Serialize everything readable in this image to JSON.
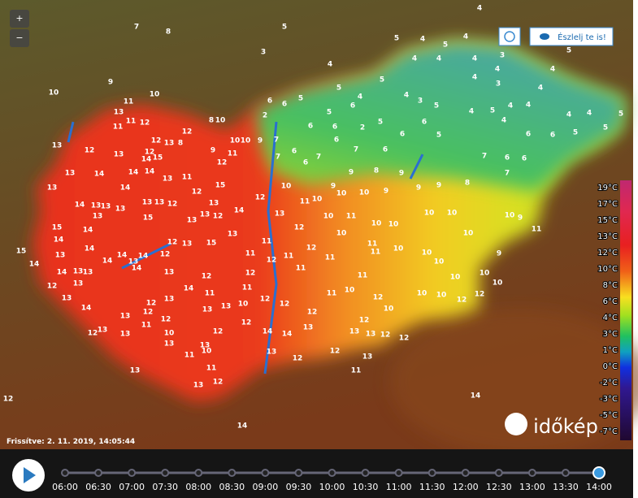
{
  "controls": {
    "zoom_in": "+",
    "zoom_out": "−",
    "report_button": "Észlelj te is!"
  },
  "map": {
    "stations": [
      4,
      7,
      8,
      5,
      3,
      4,
      5,
      9,
      10,
      10,
      11,
      12,
      14,
      14,
      5,
      4,
      5,
      4,
      4,
      4,
      4,
      3,
      4,
      4,
      5,
      4,
      3,
      4,
      5,
      5,
      4,
      5,
      6,
      4,
      3,
      5,
      4,
      5,
      4,
      4,
      4,
      4,
      5,
      5,
      6,
      6,
      4,
      5,
      2,
      6,
      6,
      5,
      2,
      6,
      6,
      6,
      7,
      6,
      6,
      6,
      5,
      7,
      6,
      6,
      7,
      8,
      8,
      9,
      9,
      7,
      6,
      6,
      7,
      7,
      9,
      9,
      9,
      9,
      9,
      10,
      10,
      10,
      11,
      10,
      12,
      13,
      12,
      10,
      11,
      10,
      10,
      10,
      10,
      10,
      10,
      9,
      11,
      9,
      10,
      10,
      10,
      10,
      10,
      10,
      11,
      11,
      10,
      11,
      12,
      11,
      11,
      12,
      11,
      11,
      12,
      11,
      12,
      12,
      12,
      11,
      10,
      11,
      12,
      10,
      10,
      10,
      12,
      12,
      12,
      13,
      13,
      12,
      12,
      13,
      14,
      14,
      13,
      12,
      12,
      13,
      11,
      12,
      10,
      13,
      11,
      11,
      12,
      12,
      8,
      8,
      10,
      10,
      10,
      11,
      9,
      12,
      13,
      12,
      12,
      15,
      14,
      13,
      12,
      13,
      13,
      14,
      14,
      14,
      13,
      11,
      13,
      14,
      14,
      13,
      13,
      13,
      13,
      13,
      13,
      12,
      12,
      15,
      13,
      13,
      12,
      14,
      13,
      15,
      15,
      14,
      14,
      15,
      14,
      13,
      14,
      14,
      14,
      13,
      14,
      12,
      12,
      13,
      15,
      13,
      14,
      13,
      13,
      12,
      13,
      14,
      13,
      14,
      12,
      11,
      13,
      14,
      13,
      12,
      12,
      13,
      13,
      13,
      13,
      12,
      13,
      11,
      12,
      10,
      12,
      13,
      13,
      13,
      11,
      10,
      11,
      12,
      13
    ]
  },
  "legend": {
    "labels": [
      "19°C",
      "17°C",
      "15°C",
      "13°C",
      "12°C",
      "10°C",
      "8°C",
      "6°C",
      "4°C",
      "3°C",
      "1°C",
      "0°C",
      "-2°C",
      "-3°C",
      "-5°C",
      "-7°C"
    ]
  },
  "updated": "Frissítve: 2. 11. 2019, 14:05:44",
  "logo": "időkép",
  "timeline": {
    "times": [
      "06:00",
      "06:30",
      "07:00",
      "07:30",
      "08:00",
      "08:30",
      "09:00",
      "09:30",
      "10:00",
      "10:30",
      "11:00",
      "11:30",
      "12:00",
      "12:30",
      "13:00",
      "13:30",
      "14:00"
    ]
  }
}
